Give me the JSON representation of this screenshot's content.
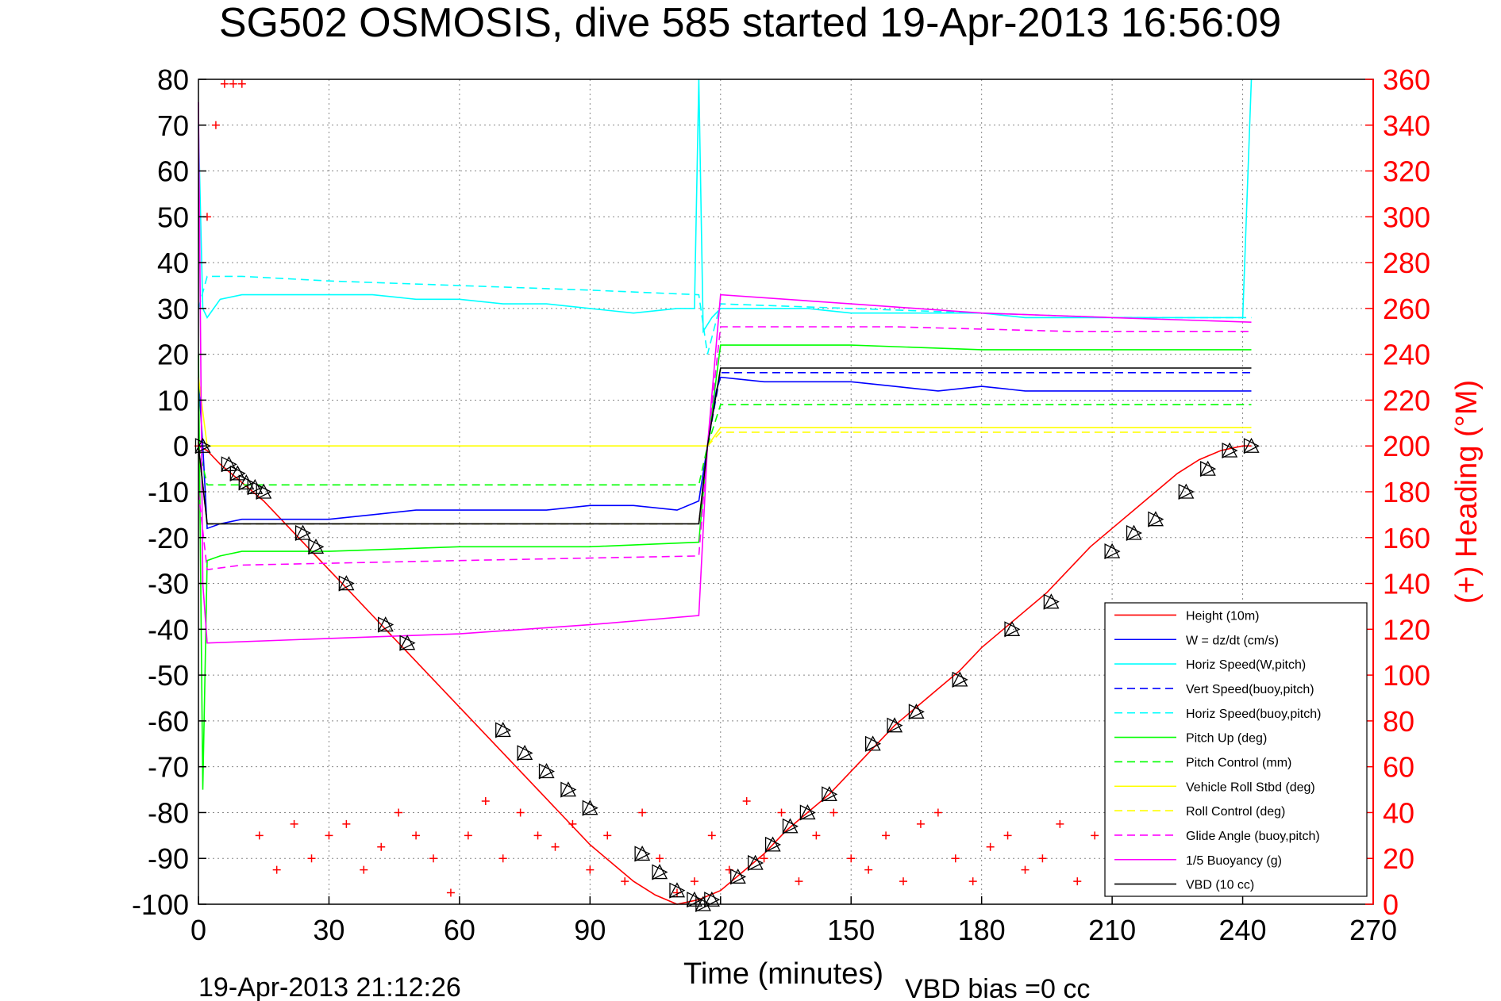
{
  "chart_data": {
    "type": "line",
    "title": "SG502 OSMOSIS, dive 585 started 19-Apr-2013 16:56:09",
    "xlabel": "Time (minutes)",
    "ylabel": "",
    "y2label": "(+) Heading (°M)",
    "footer_left": "19-Apr-2013 21:12:26",
    "footer_right": "VBD bias =0 cc",
    "xlim": [
      0,
      270
    ],
    "ylim": [
      -100,
      80
    ],
    "y2lim": [
      0,
      360
    ],
    "xticks": [
      0,
      30,
      60,
      90,
      120,
      150,
      180,
      210,
      240,
      270
    ],
    "yticks": [
      80,
      70,
      60,
      50,
      40,
      30,
      20,
      10,
      0,
      -10,
      -20,
      -30,
      -40,
      -50,
      -60,
      -70,
      -80,
      -90,
      -100
    ],
    "y2ticks": [
      360,
      340,
      320,
      300,
      280,
      260,
      240,
      220,
      200,
      180,
      160,
      140,
      120,
      100,
      80,
      60,
      40,
      20,
      0
    ],
    "grid": true,
    "legend_position": "bottom-right",
    "colors": {
      "red": "#ff0000",
      "blue": "#0000ff",
      "cyan": "#00ffff",
      "green": "#00ff00",
      "yellow": "#ffff00",
      "magenta": "#ff00ff",
      "black": "#000000"
    },
    "series": [
      {
        "name": "Height (10m)",
        "color": "#ff0000",
        "dash": "solid",
        "x": [
          0,
          2,
          5,
          10,
          15,
          20,
          25,
          30,
          35,
          40,
          45,
          50,
          55,
          60,
          65,
          70,
          75,
          80,
          85,
          90,
          95,
          100,
          105,
          110,
          115,
          120,
          125,
          130,
          135,
          140,
          145,
          150,
          155,
          160,
          165,
          170,
          175,
          180,
          185,
          190,
          195,
          200,
          205,
          210,
          215,
          220,
          225,
          230,
          235,
          240,
          242
        ],
        "y": [
          0,
          -1,
          -4,
          -8,
          -12,
          -17,
          -22,
          -27,
          -32,
          -37,
          -42,
          -47,
          -52,
          -57,
          -62,
          -67,
          -72,
          -77,
          -82,
          -87,
          -91,
          -95,
          -98,
          -100,
          -99,
          -97,
          -93,
          -89,
          -84,
          -80,
          -76,
          -71,
          -66,
          -61,
          -57,
          -53,
          -49,
          -44,
          -40,
          -36,
          -32,
          -27,
          -22,
          -18,
          -14,
          -10,
          -6,
          -3,
          -1,
          0,
          0
        ]
      },
      {
        "name": "W = dz/dt (cm/s)",
        "color": "#0000ff",
        "dash": "solid",
        "x": [
          0,
          1,
          2,
          5,
          10,
          20,
          30,
          40,
          50,
          60,
          70,
          80,
          90,
          100,
          110,
          115,
          117,
          119,
          120,
          130,
          140,
          150,
          160,
          170,
          180,
          190,
          200,
          210,
          220,
          230,
          240,
          242
        ],
        "y": [
          15,
          0,
          -18,
          -17,
          -16,
          -16,
          -16,
          -15,
          -14,
          -14,
          -14,
          -14,
          -13,
          -13,
          -14,
          -12,
          0,
          12,
          15,
          14,
          14,
          14,
          13,
          12,
          13,
          12,
          12,
          12,
          12,
          12,
          12,
          12
        ]
      },
      {
        "name": "Horiz Speed(W,pitch)",
        "color": "#00ffff",
        "dash": "solid",
        "x": [
          0,
          1,
          2,
          5,
          10,
          20,
          30,
          40,
          50,
          60,
          70,
          80,
          90,
          100,
          110,
          114,
          115,
          116,
          118,
          120,
          130,
          140,
          150,
          160,
          170,
          180,
          190,
          200,
          210,
          220,
          230,
          240,
          242
        ],
        "y": [
          70,
          30,
          28,
          32,
          33,
          33,
          33,
          33,
          32,
          32,
          31,
          31,
          30,
          29,
          30,
          30,
          80,
          25,
          28,
          30,
          30,
          30,
          29,
          29,
          29,
          29,
          28,
          28,
          28,
          28,
          28,
          28,
          80
        ]
      },
      {
        "name": "Vert Speed(buoy,pitch)",
        "color": "#0000ff",
        "dash": "dashed",
        "x": [
          0,
          2,
          10,
          50,
          100,
          115,
          117,
          120,
          160,
          200,
          242
        ],
        "y": [
          0,
          -17,
          -17,
          -17,
          -17,
          -17,
          0,
          16,
          16,
          16,
          16
        ]
      },
      {
        "name": "Horiz Speed(buoy,pitch)",
        "color": "#00ffff",
        "dash": "dashed",
        "x": [
          0,
          2,
          10,
          30,
          60,
          90,
          115,
          117,
          120,
          150,
          180,
          210,
          242
        ],
        "y": [
          30,
          37,
          37,
          36,
          35,
          34,
          33,
          20,
          31,
          30,
          29,
          28,
          28
        ]
      },
      {
        "name": "Pitch Up (deg)",
        "color": "#00ff00",
        "dash": "solid",
        "x": [
          0,
          1,
          2,
          5,
          10,
          30,
          60,
          90,
          115,
          117,
          120,
          150,
          180,
          210,
          242
        ],
        "y": [
          20,
          -75,
          -25,
          -24,
          -23,
          -23,
          -22,
          -22,
          -21,
          0,
          22,
          22,
          21,
          21,
          21
        ]
      },
      {
        "name": "Pitch Control (mm)",
        "color": "#00ff00",
        "dash": "dashed",
        "x": [
          0,
          2,
          115,
          117,
          120,
          242
        ],
        "y": [
          0,
          -8.5,
          -8.5,
          0,
          9,
          9
        ]
      },
      {
        "name": "Vehicle Roll Stbd (deg)",
        "color": "#ffff00",
        "dash": "solid",
        "x": [
          0,
          2,
          10,
          60,
          115,
          117,
          120,
          160,
          200,
          240,
          242
        ],
        "y": [
          15,
          0,
          0,
          0,
          0,
          0,
          4,
          4,
          4,
          4,
          4
        ]
      },
      {
        "name": "Roll Control (deg)",
        "color": "#ffff00",
        "dash": "dashed",
        "x": [
          0,
          2,
          115,
          117,
          120,
          242
        ],
        "y": [
          0,
          -17,
          -17,
          0,
          3,
          3
        ]
      },
      {
        "name": "Glide Angle (buoy,pitch)",
        "color": "#ff00ff",
        "dash": "dashed",
        "x": [
          0,
          2,
          10,
          60,
          115,
          117,
          120,
          160,
          200,
          242
        ],
        "y": [
          -10,
          -27,
          -26,
          -25,
          -24,
          0,
          26,
          26,
          25,
          25
        ]
      },
      {
        "name": "1/5 Buoyancy (g)",
        "color": "#ff00ff",
        "dash": "solid",
        "x": [
          0,
          1,
          2,
          30,
          60,
          90,
          115,
          117,
          120,
          150,
          180,
          210,
          242
        ],
        "y": [
          75,
          -30,
          -43,
          -42,
          -41,
          -39,
          -37,
          0,
          33,
          31,
          29,
          28,
          27
        ]
      },
      {
        "name": "VBD (10 cc)",
        "color": "#000000",
        "dash": "solid",
        "x": [
          0,
          2,
          115,
          117,
          120,
          242
        ],
        "y": [
          0,
          -17,
          -17,
          0,
          17,
          17
        ]
      }
    ],
    "heading": {
      "name": "(+) Heading",
      "color": "#ff0000",
      "marker": "+",
      "x": [
        0,
        2,
        4,
        6,
        8,
        10,
        14,
        18,
        22,
        26,
        30,
        34,
        38,
        42,
        46,
        50,
        54,
        58,
        62,
        66,
        70,
        74,
        78,
        82,
        86,
        90,
        94,
        98,
        102,
        106,
        110,
        114,
        118,
        122,
        126,
        130,
        134,
        138,
        142,
        146,
        150,
        154,
        158,
        162,
        166,
        170,
        174,
        178,
        182,
        186,
        190,
        194,
        198,
        202,
        206,
        210,
        214,
        218,
        222,
        226,
        230,
        234,
        238,
        242
      ],
      "y": [
        200,
        300,
        340,
        358,
        358,
        358,
        30,
        15,
        35,
        20,
        30,
        35,
        15,
        25,
        40,
        30,
        20,
        5,
        30,
        45,
        20,
        40,
        30,
        25,
        35,
        15,
        30,
        10,
        40,
        20,
        5,
        10,
        30,
        15,
        45,
        20,
        40,
        10,
        30,
        40,
        20,
        15,
        30,
        10,
        35,
        40,
        20,
        10,
        25,
        30,
        15,
        20,
        35,
        10,
        30,
        25,
        20,
        30,
        40,
        15,
        20,
        30,
        10,
        5
      ]
    },
    "heading_markers": {
      "x": [
        1,
        7,
        9,
        11,
        13,
        15,
        24,
        27,
        34,
        43,
        48,
        70,
        75,
        80,
        85,
        90,
        102,
        106,
        110,
        114,
        116,
        118,
        124,
        128,
        132,
        136,
        140,
        145,
        155,
        160,
        165,
        175,
        187,
        196,
        210,
        215,
        220,
        227,
        232,
        237,
        242
      ],
      "y": [
        0,
        -4,
        -6,
        -8,
        -9,
        -10,
        -19,
        -22,
        -30,
        -39,
        -43,
        -62,
        -67,
        -71,
        -75,
        -79,
        -89,
        -93,
        -97,
        -99,
        -100,
        -99,
        -94,
        -91,
        -87,
        -83,
        -80,
        -76,
        -65,
        -61,
        -58,
        -51,
        -40,
        -34,
        -23,
        -19,
        -16,
        -10,
        -5,
        -1,
        0
      ]
    }
  }
}
